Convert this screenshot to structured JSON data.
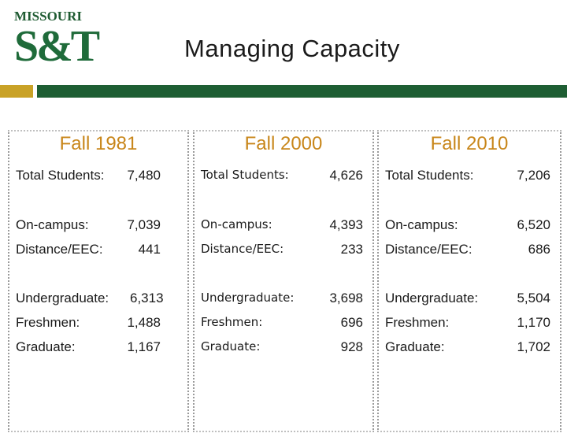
{
  "logo": {
    "top": "MISSOURI",
    "main": "S&T"
  },
  "title": "Managing Capacity",
  "columns": [
    {
      "heading": "Fall 1981",
      "rows": [
        {
          "label": "Total Students:",
          "value": "7,480"
        },
        {
          "label": "On-campus:",
          "value": "7,039"
        },
        {
          "label": "Distance/EEC:",
          "value": "441"
        },
        {
          "label": "Undergraduate:",
          "value": "6,313"
        },
        {
          "label": "Freshmen:",
          "value": "1,488"
        },
        {
          "label": "Graduate:",
          "value": "1,167"
        }
      ]
    },
    {
      "heading": "Fall 2000",
      "rows": [
        {
          "label": "Total Students:",
          "value": "4,626"
        },
        {
          "label": "On-campus:",
          "value": "4,393"
        },
        {
          "label": "Distance/EEC:",
          "value": "233"
        },
        {
          "label": "Undergraduate:",
          "value": "3,698"
        },
        {
          "label": "Freshmen:",
          "value": "696"
        },
        {
          "label": "Graduate:",
          "value": "928"
        }
      ]
    },
    {
      "heading": "Fall 2010",
      "rows": [
        {
          "label": "Total Students:",
          "value": "7,206"
        },
        {
          "label": "On-campus:",
          "value": "6,520"
        },
        {
          "label": "Distance/EEC:",
          "value": "686"
        },
        {
          "label": "Undergraduate:",
          "value": "5,504"
        },
        {
          "label": "Freshmen:",
          "value": "1,170"
        },
        {
          "label": "Graduate:",
          "value": "1,702"
        }
      ]
    }
  ],
  "colors": {
    "brand_green": "#1e5e33",
    "gold": "#c9a227",
    "heading": "#c8861a"
  }
}
